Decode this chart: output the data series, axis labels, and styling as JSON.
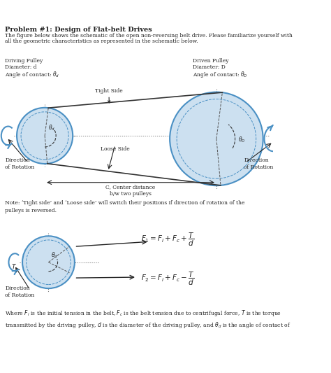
{
  "title": "Problem #1: Design of Flat-belt Drives",
  "intro_line1": "The figure below shows the schematic of the open non-reversing belt drive. Please familiarize yourself with",
  "intro_line2": "all the geometric characteristics as represented in the schematic below.",
  "driving_label_line1": "Driving Pulley",
  "driving_label_line2": "Diameter: d",
  "driving_label_line3": "Angle of contact: θₙ",
  "driven_label_line1": "Driven Pulley",
  "driven_label_line2": "Diameter: D",
  "driven_label_line3": "Angle of contact: θᴰ",
  "tight_side": "Tight Side",
  "loose_side": "Loose Side",
  "center_dist": "C, Center distance\nb/w two pulleys",
  "dir_rot_left": "Direction\nof Rotation",
  "dir_rot_right": "Direction\nof Rotation",
  "note": "Note: ‘Tight side’ and ‘Loose side’ will switch their positions if direction of rotation of the\npulleys is reversed.",
  "eq1": "$F_1 = F_i + F_c + \\dfrac{T}{d}$",
  "eq2": "$F_2 = F_i + F_c - \\dfrac{T}{d}$",
  "where_text": "Where $F_i$ is the initial tension in the belt, $F_c$ is the belt tension due to centrifugal force, $T$ is the torque\ntransmitted by the driving pulley, $d$ is the diameter of the driving pulley, and $\\theta_d$ is the angle of contact of",
  "bg_color": "#ffffff",
  "pulley_fill": "#cce0f0",
  "pulley_edge": "#4a90c4",
  "text_color": "#222222",
  "arrow_color": "#111111"
}
